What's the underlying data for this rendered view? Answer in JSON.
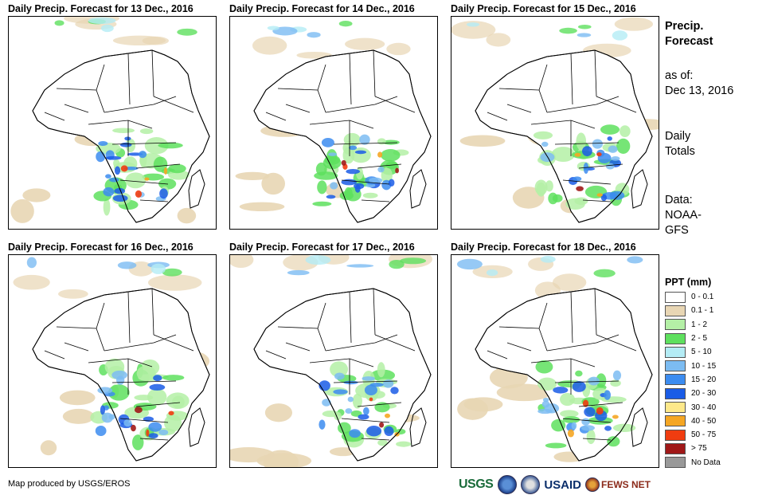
{
  "panels": [
    {
      "title": "Daily Precip. Forecast for 13 Dec., 2016"
    },
    {
      "title": "Daily Precip. Forecast for 14 Dec., 2016"
    },
    {
      "title": "Daily Precip. Forecast for 15 Dec., 2016"
    },
    {
      "title": "Daily Precip. Forecast for 16 Dec., 2016"
    },
    {
      "title": "Daily Precip. Forecast for 17 Dec., 2016"
    },
    {
      "title": "Daily Precip. Forecast for 18 Dec., 2016"
    }
  ],
  "side": {
    "title_line1": "Precip.",
    "title_line2": "Forecast",
    "asof_line1": "as of:",
    "asof_line2": "Dec 13, 2016",
    "totals_line1": "Daily",
    "totals_line2": "Totals",
    "data_line1": "Data:",
    "data_line2": "NOAA-",
    "data_line3": "GFS"
  },
  "legend": {
    "title": "PPT (mm)",
    "items": [
      {
        "label": "0 - 0.1",
        "color": "#ffffff"
      },
      {
        "label": "0.1 - 1",
        "color": "#e8d6b4"
      },
      {
        "label": "1 - 2",
        "color": "#b4f0a6"
      },
      {
        "label": "2 - 5",
        "color": "#5ee05e"
      },
      {
        "label": "5 - 10",
        "color": "#b4ecf5"
      },
      {
        "label": "10 - 15",
        "color": "#7cbcf2"
      },
      {
        "label": "15 - 20",
        "color": "#3c8cf0"
      },
      {
        "label": "20 - 30",
        "color": "#1a5ce6"
      },
      {
        "label": "30 - 40",
        "color": "#fde88a"
      },
      {
        "label": "40 - 50",
        "color": "#f5a623"
      },
      {
        "label": "50 - 75",
        "color": "#f03c10"
      },
      {
        "label": "> 75",
        "color": "#a01818"
      },
      {
        "label": "No Data",
        "color": "#999999"
      }
    ]
  },
  "footer": {
    "credit": "Map produced by USGS/EROS"
  },
  "logos": {
    "usgs": "USGS",
    "usaid": "USAID",
    "fews": "FEWS NET"
  }
}
